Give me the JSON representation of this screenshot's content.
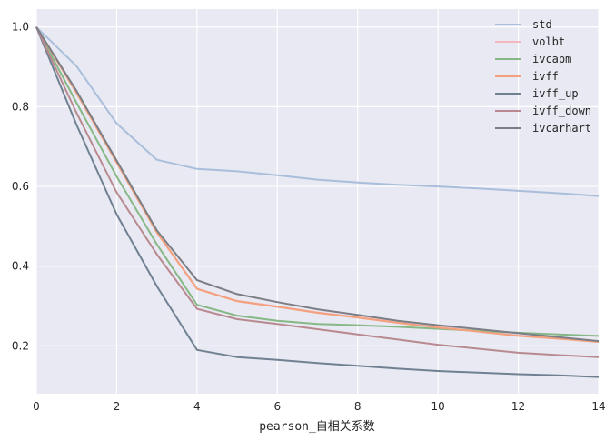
{
  "chart_data": {
    "type": "line",
    "title": "",
    "xlabel": "pearson_自相关系数",
    "ylabel": "",
    "xlim": [
      0,
      14
    ],
    "ylim": [
      0.08,
      1.045
    ],
    "x": [
      0,
      1,
      2,
      3,
      4,
      5,
      6,
      7,
      8,
      9,
      10,
      11,
      12,
      13,
      14
    ],
    "x_ticks": [
      "0",
      "2",
      "4",
      "6",
      "8",
      "10",
      "12",
      "14"
    ],
    "y_ticks": [
      "0.2",
      "0.4",
      "0.6",
      "0.8",
      "1.0"
    ],
    "grid": true,
    "legend_position": "upper right",
    "series": [
      {
        "name": "std",
        "color": "#a9bedb",
        "values": [
          1.0,
          0.902,
          0.758,
          0.667,
          0.644,
          0.638,
          0.628,
          0.617,
          0.61,
          0.604,
          0.6,
          0.595,
          0.589,
          0.583,
          0.576
        ]
      },
      {
        "name": "volbt",
        "color": "#f7b6bd",
        "values": [
          1.0,
          0.836,
          0.661,
          0.486,
          0.344,
          0.313,
          0.299,
          0.284,
          0.272,
          0.259,
          0.247,
          0.237,
          0.226,
          0.219,
          0.211
        ]
      },
      {
        "name": "ivcapm",
        "color": "#86b886",
        "values": [
          1.0,
          0.81,
          0.625,
          0.455,
          0.303,
          0.276,
          0.263,
          0.255,
          0.252,
          0.248,
          0.243,
          0.238,
          0.233,
          0.229,
          0.225
        ]
      },
      {
        "name": "ivff",
        "color": "#f4a07c",
        "values": [
          1.0,
          0.835,
          0.66,
          0.485,
          0.343,
          0.312,
          0.298,
          0.283,
          0.271,
          0.258,
          0.246,
          0.236,
          0.225,
          0.218,
          0.21
        ]
      },
      {
        "name": "ivff_up",
        "color": "#6f8191",
        "values": [
          1.0,
          0.755,
          0.53,
          0.35,
          0.19,
          0.172,
          0.165,
          0.157,
          0.15,
          0.143,
          0.137,
          0.133,
          0.129,
          0.126,
          0.122
        ]
      },
      {
        "name": "ivff_down",
        "color": "#b88a8f",
        "values": [
          1.0,
          0.785,
          0.585,
          0.43,
          0.293,
          0.267,
          0.255,
          0.242,
          0.229,
          0.216,
          0.203,
          0.193,
          0.183,
          0.177,
          0.172
        ]
      },
      {
        "name": "ivcarhart",
        "color": "#7b7e85",
        "values": [
          1.0,
          0.84,
          0.665,
          0.49,
          0.365,
          0.33,
          0.31,
          0.292,
          0.278,
          0.263,
          0.252,
          0.242,
          0.232,
          0.222,
          0.212
        ]
      }
    ]
  },
  "style": {
    "plot_bg": "#e8e9f2",
    "grid_color": "#ffffff",
    "text_color": "#262626"
  }
}
